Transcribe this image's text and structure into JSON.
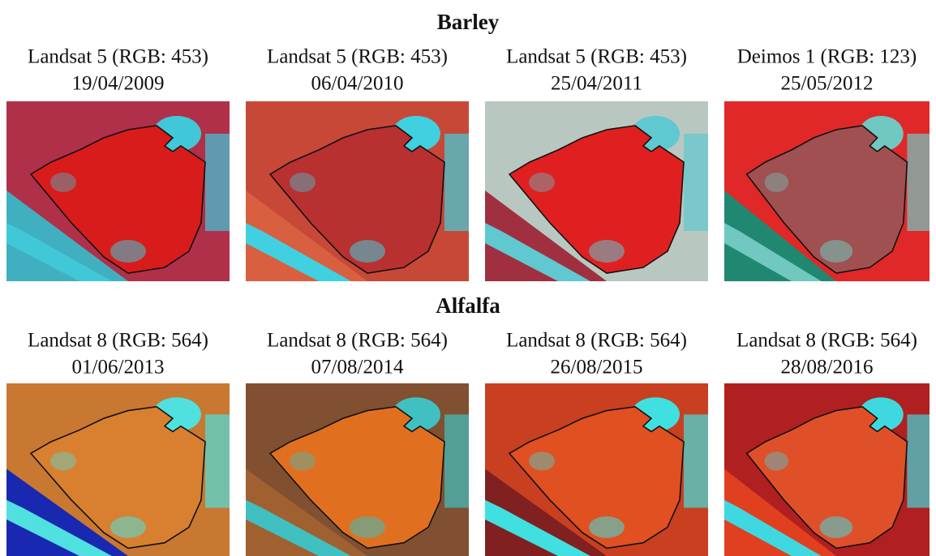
{
  "sections": [
    {
      "title": "Barley",
      "panels": [
        {
          "sensor": "Landsat 5 (RGB: 453)",
          "date": "19/04/2009"
        },
        {
          "sensor": "Landsat 5 (RGB: 453)",
          "date": "06/04/2010"
        },
        {
          "sensor": "Landsat 5 (RGB: 453)",
          "date": "25/04/2011"
        },
        {
          "sensor": "Deimos 1 (RGB: 123)",
          "date": "25/05/2012"
        }
      ]
    },
    {
      "title": "Alfalfa",
      "panels": [
        {
          "sensor": "Landsat 8 (RGB: 564)",
          "date": "01/06/2013"
        },
        {
          "sensor": "Landsat 8 (RGB: 564)",
          "date": "07/08/2014"
        },
        {
          "sensor": "Landsat 8 (RGB: 564)",
          "date": "26/08/2015"
        },
        {
          "sensor": "Landsat 8 (RGB: 564)",
          "date": "28/08/2016"
        }
      ]
    }
  ]
}
